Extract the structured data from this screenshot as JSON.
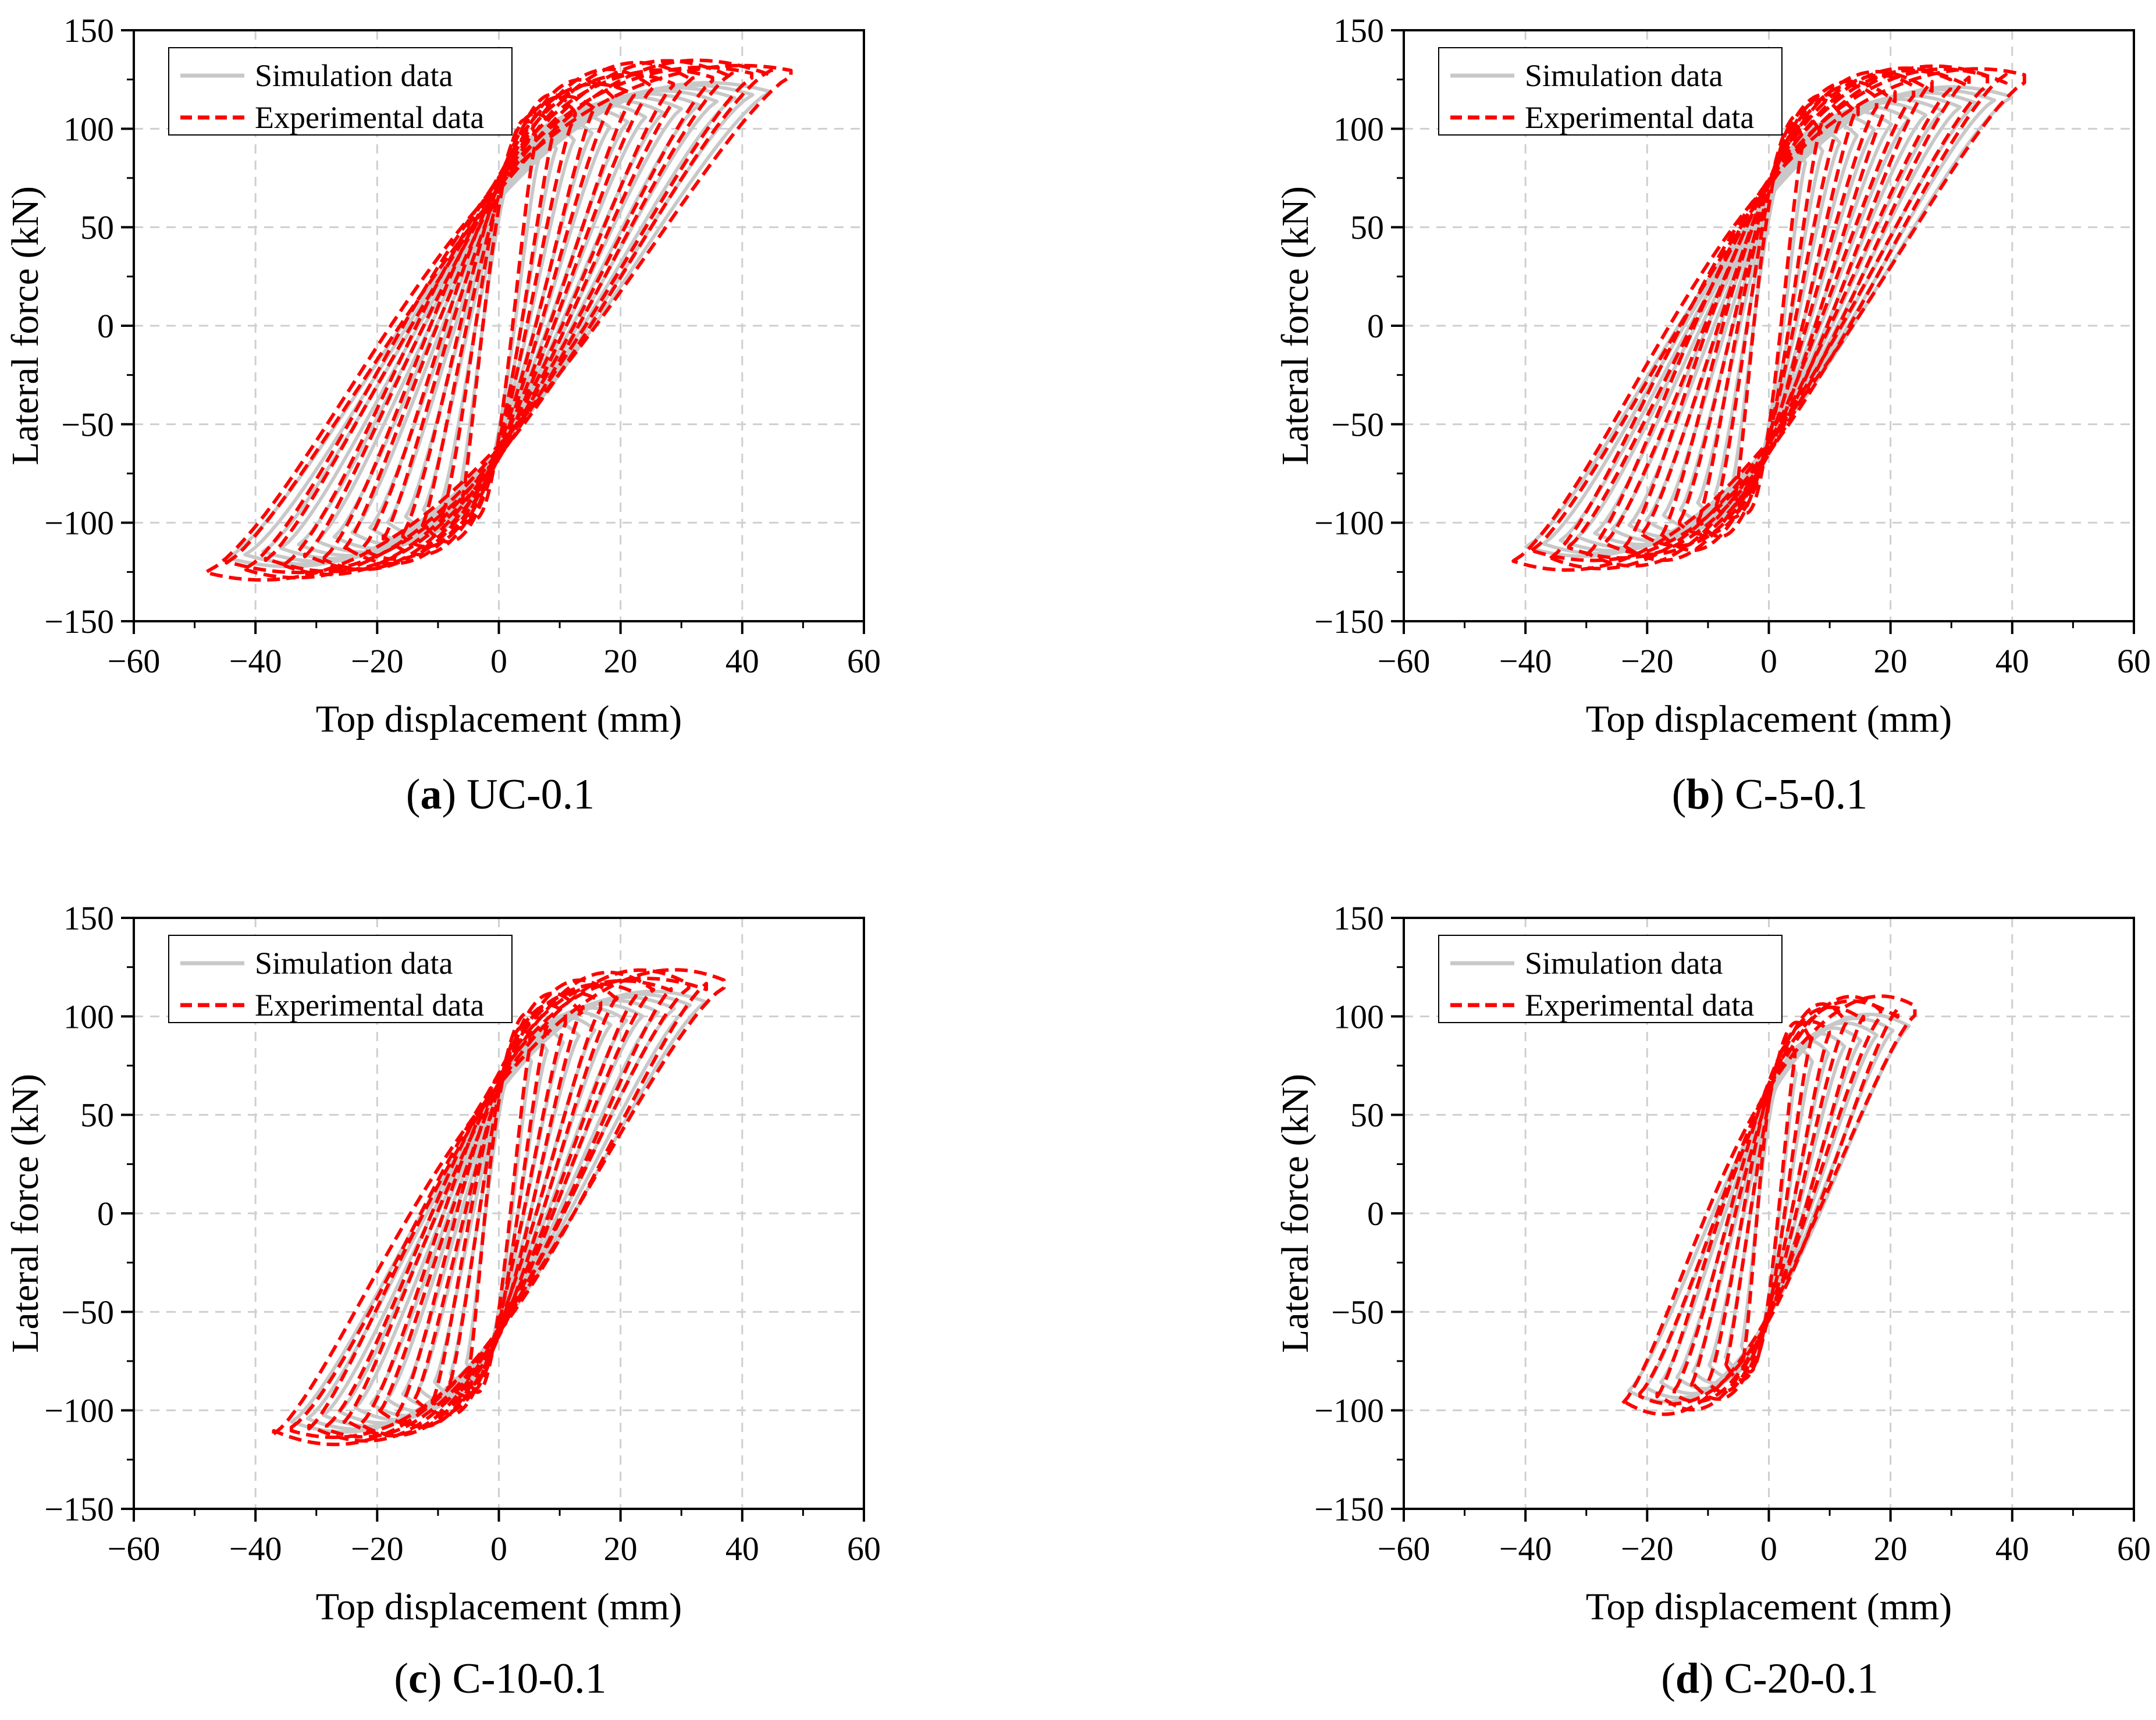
{
  "figure": {
    "panels": [
      {
        "id": "a",
        "caption": {
          "open": "(",
          "letter": "a",
          "close": ")",
          "name": "UC-0.1"
        },
        "max_disp": 48,
        "max_force": 135,
        "min_force": 128,
        "cycles": 14,
        "sim_scale": 0.93
      },
      {
        "id": "b",
        "caption": {
          "open": "(",
          "letter": "b",
          "close": ")",
          "name": "C-5-0.1"
        },
        "max_disp": 42,
        "max_force": 132,
        "min_force": 122,
        "cycles": 13,
        "sim_scale": 0.95
      },
      {
        "id": "c",
        "caption": {
          "open": "(",
          "letter": "c",
          "close": ")",
          "name": "C-10-0.1"
        },
        "max_disp": 37,
        "max_force": 122,
        "min_force": 115,
        "cycles": 12,
        "sim_scale": 0.92
      },
      {
        "id": "d",
        "caption": {
          "open": "(",
          "letter": "d",
          "close": ")",
          "name": "C-20-0.1"
        },
        "max_disp": 24,
        "max_force": 108,
        "min_force": 98,
        "cycles": 8,
        "sim_scale": 0.96
      }
    ]
  },
  "chart_data": [
    {
      "type": "line",
      "title": "(a) UC-0.1",
      "xlabel": "Top displacement (mm)",
      "ylabel": "Lateral force (kN)",
      "xlim": [
        -60,
        60
      ],
      "ylim": [
        -150,
        150
      ],
      "xticks": [
        -60,
        -40,
        -20,
        0,
        20,
        40,
        60
      ],
      "yticks": [
        150,
        100,
        50,
        0,
        -50,
        -100,
        -150
      ],
      "grid": true,
      "legend_position": "top-left",
      "series": [
        {
          "name": "Simulation data",
          "color": "#c8c8c8",
          "style": "solid",
          "peak_positive": [
            45,
            125
          ],
          "peak_negative": [
            -47,
            -128
          ]
        },
        {
          "name": "Experimental data",
          "color": "#ff0000",
          "style": "dashed",
          "peak_positive": [
            48,
            137
          ],
          "peak_negative": [
            -48,
            -135
          ]
        }
      ]
    },
    {
      "type": "line",
      "title": "(b) C-5-0.1",
      "xlabel": "Top displacement (mm)",
      "ylabel": "Lateral force (kN)",
      "xlim": [
        -60,
        60
      ],
      "ylim": [
        -150,
        150
      ],
      "xticks": [
        -60,
        -40,
        -20,
        0,
        20,
        40,
        60
      ],
      "yticks": [
        150,
        100,
        50,
        0,
        -50,
        -100,
        -150
      ],
      "grid": true,
      "legend_position": "top-left",
      "series": [
        {
          "name": "Simulation data",
          "color": "#c8c8c8",
          "style": "solid",
          "peak_positive": [
            44,
            120
          ],
          "peak_negative": [
            -44,
            -118
          ]
        },
        {
          "name": "Experimental data",
          "color": "#ff0000",
          "style": "dashed",
          "peak_positive": [
            42,
            136
          ],
          "peak_negative": [
            -41,
            -125
          ]
        }
      ]
    },
    {
      "type": "line",
      "title": "(c) C-10-0.1",
      "xlabel": "Top displacement (mm)",
      "ylabel": "Lateral force (kN)",
      "xlim": [
        -60,
        60
      ],
      "ylim": [
        -150,
        150
      ],
      "xticks": [
        -60,
        -40,
        -20,
        0,
        20,
        40,
        60
      ],
      "yticks": [
        150,
        100,
        50,
        0,
        -50,
        -100,
        -150
      ],
      "grid": true,
      "legend_position": "top-left",
      "series": [
        {
          "name": "Simulation data",
          "color": "#c8c8c8",
          "style": "solid",
          "peak_positive": [
            38,
            109
          ],
          "peak_negative": [
            -38,
            -109
          ]
        },
        {
          "name": "Experimental data",
          "color": "#ff0000",
          "style": "dashed",
          "peak_positive": [
            36,
            127
          ],
          "peak_negative": [
            -37,
            -120
          ]
        }
      ]
    },
    {
      "type": "line",
      "title": "(d) C-20-0.1",
      "xlabel": "Top displacement (mm)",
      "ylabel": "Lateral force (kN)",
      "xlim": [
        -60,
        60
      ],
      "ylim": [
        -150,
        150
      ],
      "xticks": [
        -60,
        -40,
        -20,
        0,
        20,
        40,
        60
      ],
      "yticks": [
        150,
        100,
        50,
        0,
        -50,
        -100,
        -150
      ],
      "grid": true,
      "legend_position": "top-left",
      "series": [
        {
          "name": "Simulation data",
          "color": "#c8c8c8",
          "style": "solid",
          "peak_positive": [
            21,
            110
          ],
          "peak_negative": [
            -22,
            -110
          ]
        },
        {
          "name": "Experimental data",
          "color": "#ff0000",
          "style": "dashed",
          "peak_positive": [
            24,
            112
          ],
          "peak_negative": [
            -24,
            -100
          ]
        }
      ]
    }
  ]
}
